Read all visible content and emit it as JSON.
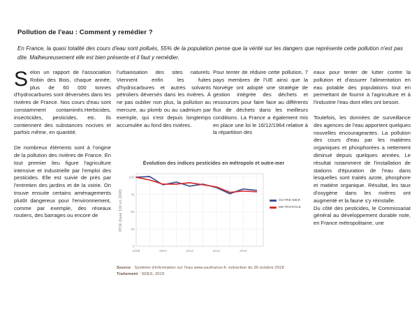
{
  "page": {
    "title": "Pollution de l'eau : Comment y remédier ?",
    "intro": "En France, la quasi totalité des cours d'eau sont pollués, 55% de la population pense que la vérité sur les dangers que représente cette pollution n'est pas dite. Malheureusement elle est bien présente et il faut y remédier."
  },
  "columns": {
    "col1": {
      "dropcap": "S",
      "p1": "elon un rapport de l'association Robin des Bois, chaque année, plus de 60 000 tonnes d'hydrocarbures sont déversées dans les rivières de France. Nos cours d'eau sont constamment contaminés.Herbicides, insecticides, pesticides, etc. Ils contiennent des substances nocives et parfois même, en quantité.",
      "p2": "De nombreux éléments sont à l'origine de la pollution des rivières de France. En tout premier lieu figure l'agriculture intensive et industrielle par l'emploi des pesticides. Elle est suivie de près par l'entretien des jardins et de la voirie. On trouve ensuite certains aménagements plutôt dangereux pour l'environnement, comme par exemple, des réseaux routiers, des barrages ou encore de"
    },
    "col2": {
      "p1": "l'urbanisation des sites naturels. Viennent enfin les fuites d'hydrocarbures et autres solvants pétroliers déversés dans les rivières. À ne pas oublier non plus, la pollution au mercure, au plomb ou au cadmium par exemple, qui s'est depuis longtemps accumulée au fond des rivières."
    },
    "col3": {
      "p1": "Pour tenter de réduire cette pollution, 7 pays membres de l'UE ainsi que la Norvège ont adopté une stratégie de gestion intégrée des déchets et ressources pour faire face au différents flux de déchets dans les meilleurs conditions. La France a également mis en place une loi le 16/12/1964 relative à la répartition des"
    },
    "col4": {
      "p1": "eaux pour tenter de lutter contre la pollution et d'assurer l'alimentation en eau potable des populations tout en permettant de fournir à l'agriculture et à l'industrie l'eau dont elles ont besoin.",
      "p2": "Toutefois, les données de surveillance des agences de l'eau apportent quelques nouvelles encourageantes. La pollution des cours d'eau par les matières organiques et phosphorées a nettement diminué depuis quelques années. Le résultat notamment de l'installation de stations d'épuration de l'eau dans lesquelles sont traités azote, phosphore et matière organique. Résultat, les taux d'oxygène dans les rivières ont augmenté et la faune s'y réinstalle.",
      "p3": "Du côté des pesticides, le Commissariat général au développement durable note, en France métropolitaine, une"
    }
  },
  "chart": {
    "title": "Évolution des indices pesticides en métropole et outre-mer",
    "ylabel": "IPCE (base 100 en 2008)",
    "source_label": "Source",
    "source_text": " : Système d'information sur l'eau www.eaufrance.fr, extraction du 30 octobre 2018",
    "treatment_label": "Traitement",
    "treatment_text": " : SDES, 2019"
  },
  "chart_data": {
    "type": "line",
    "title": "Évolution des indices pesticides en métropole et outre-mer",
    "ylabel": "IPCE (base 100 en 2008)",
    "x": [
      2008,
      2009,
      2010,
      2011,
      2012,
      2013,
      2014,
      2015,
      2016,
      2017
    ],
    "series": [
      {
        "name": "OUTRE-MER",
        "color": "#3e4d91",
        "values": [
          100,
          101,
          89,
          93,
          87,
          90,
          85,
          76,
          83,
          81
        ]
      },
      {
        "name": "METROPOLE",
        "color": "#d53030",
        "values": [
          100,
          96,
          90,
          90,
          92,
          89,
          86,
          78,
          80,
          79
        ]
      }
    ],
    "ylim": [
      0,
      105
    ],
    "xlim": [
      2008,
      2017.5
    ],
    "yticks": [
      0,
      25,
      50,
      75,
      100
    ],
    "xticks": [
      2008,
      2010,
      2012,
      2014,
      2016
    ],
    "grid": true,
    "legend_position": "right"
  }
}
